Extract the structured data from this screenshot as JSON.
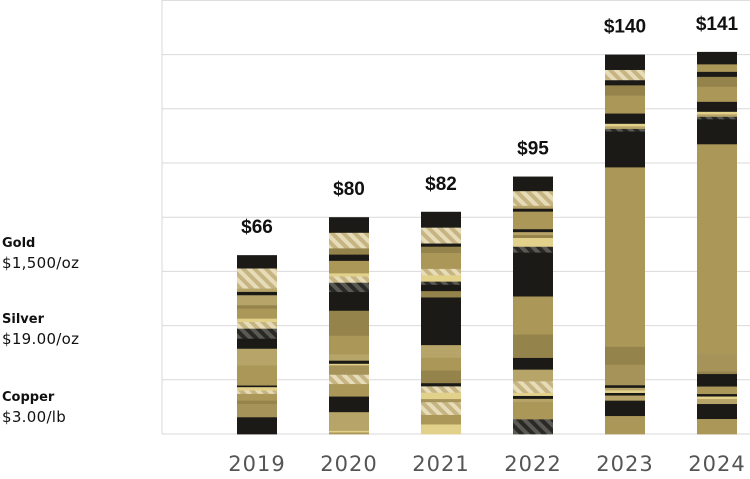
{
  "chart_data": {
    "type": "bar",
    "stacked": true,
    "categories": [
      "2019",
      "2020",
      "2021",
      "2022",
      "2023",
      "2024"
    ],
    "totals": [
      66,
      80,
      82,
      95,
      140,
      141
    ],
    "total_labels": [
      "$66",
      "$80",
      "$82",
      "$95",
      "$140",
      "$141"
    ],
    "ylim": [
      0,
      160
    ],
    "grid": true,
    "segments_top_down": [
      [
        4,
        6,
        1,
        1,
        3,
        1,
        3,
        1,
        2,
        3,
        3,
        5,
        6,
        0.5,
        1,
        1,
        2,
        1,
        4,
        5
      ],
      [
        5,
        5,
        2,
        2,
        4,
        1,
        2,
        3,
        6,
        8,
        6,
        2,
        1,
        0.5,
        3,
        3,
        4,
        5,
        6,
        0.5,
        0.5
      ],
      [
        5,
        5,
        1,
        2,
        5,
        2,
        2,
        1,
        2,
        2,
        15,
        4,
        4,
        4,
        1,
        2,
        2,
        1,
        4,
        3,
        3
      ],
      [
        5,
        5,
        1,
        1,
        6,
        1,
        1,
        1,
        3,
        2,
        15,
        13,
        8,
        4,
        4,
        4,
        1,
        1,
        1,
        6,
        5
      ],
      [
        6,
        4,
        2,
        4,
        7,
        4,
        1,
        1,
        1,
        1,
        13,
        70,
        7,
        8,
        1,
        1,
        1,
        1,
        2,
        6,
        7
      ],
      [
        5,
        3,
        2,
        4,
        6,
        4,
        1,
        1,
        1,
        1,
        9,
        84,
        7,
        1,
        5,
        3,
        1,
        1,
        2,
        6,
        6
      ]
    ],
    "segment_palette": [
      "#1b1a17",
      "#b7a468",
      "#95834c",
      "#ab9858",
      "#e2d18b",
      "hatch"
    ]
  },
  "assumptions": [
    {
      "metal": "Gold",
      "price": "$1,500/oz"
    },
    {
      "metal": "Silver",
      "price": "$19.00/oz"
    },
    {
      "metal": "Copper",
      "price": "$3.00/lb"
    }
  ]
}
